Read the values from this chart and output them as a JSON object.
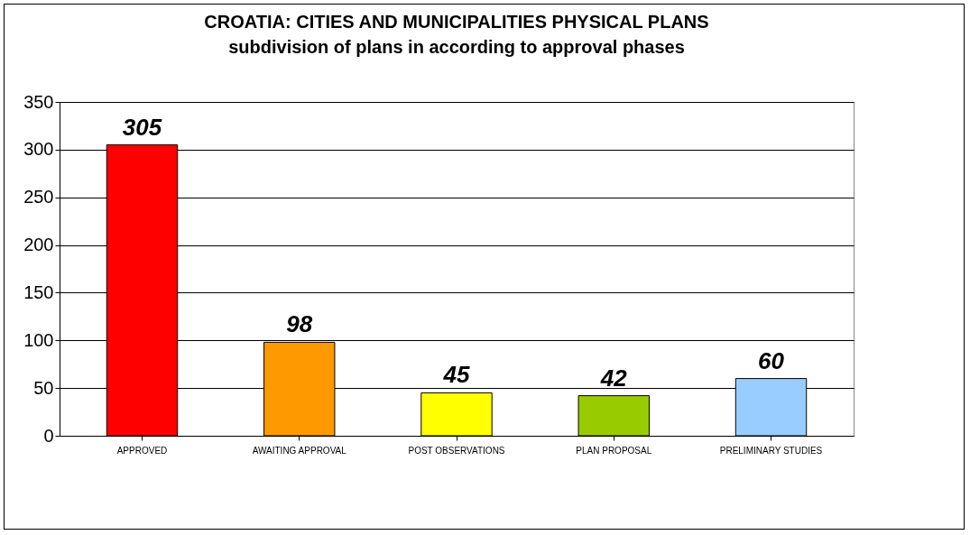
{
  "chart_data": {
    "type": "bar",
    "title": "CROATIA: CITIES AND MUNICIPALITIES PHYSICAL PLANS",
    "subtitle": "subdivision of plans in according to approval phases",
    "categories": [
      "APPROVED",
      "AWAITING APPROVAL",
      "POST OBSERVATIONS",
      "PLAN PROPOSAL",
      "PRELIMINARY STUDIES"
    ],
    "values": [
      305,
      98,
      45,
      42,
      60
    ],
    "colors": [
      "#ff0000",
      "#ff9900",
      "#ffff00",
      "#99cc00",
      "#99ccff"
    ],
    "ylim": [
      0,
      350
    ],
    "yticks": [
      0,
      50,
      100,
      150,
      200,
      250,
      300,
      350
    ],
    "grid": "y",
    "data_labels": true
  }
}
